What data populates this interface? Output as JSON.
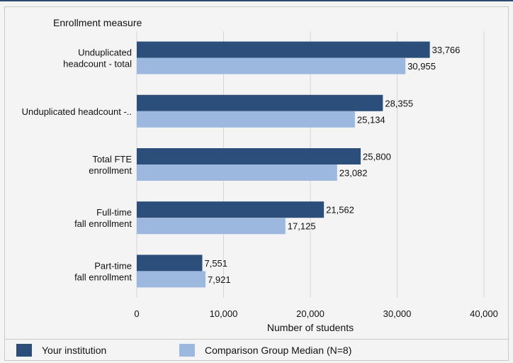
{
  "chart_data": {
    "type": "bar",
    "orientation": "horizontal",
    "title": "Enrollment measure",
    "xlabel": "Number of students",
    "xlim": [
      0,
      40000
    ],
    "xticks": [
      0,
      10000,
      20000,
      30000,
      40000
    ],
    "xtick_labels": [
      "0",
      "10,000",
      "20,000",
      "30,000",
      "40,000"
    ],
    "grid": "vertical",
    "categories": [
      [
        "Unduplicated",
        "headcount - total"
      ],
      [
        "Unduplicated headcount -.."
      ],
      [
        "Total FTE",
        "enrollment"
      ],
      [
        "Full-time",
        "fall enrollment"
      ],
      [
        "Part-time",
        "fall enrollment"
      ]
    ],
    "series": [
      {
        "name": "Your institution",
        "color": "#2b4f7a",
        "values": [
          33766,
          28355,
          25800,
          21562,
          7551
        ],
        "labels": [
          "33,766",
          "28,355",
          "25,800",
          "21,562",
          "7,551"
        ]
      },
      {
        "name": "Comparison Group Median (N=8)",
        "color": "#9db8df",
        "values": [
          30955,
          25134,
          23082,
          17125,
          7921
        ],
        "labels": [
          "30,955",
          "25,134",
          "23,082",
          "17,125",
          "7,921"
        ]
      }
    ],
    "legend_position": "bottom"
  }
}
